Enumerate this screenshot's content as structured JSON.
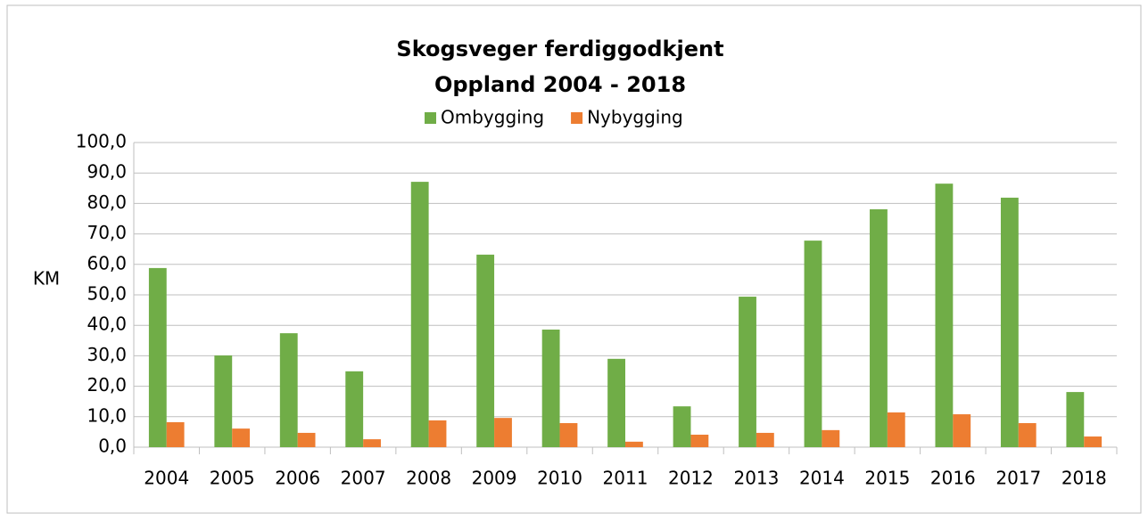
{
  "chart_data": {
    "type": "bar",
    "title": "Skogsveger ferdiggodkjent",
    "subtitle": "Oppland 2004 - 2018",
    "ylabel": "KM",
    "categories": [
      "2004",
      "2005",
      "2006",
      "2007",
      "2008",
      "2009",
      "2010",
      "2011",
      "2012",
      "2013",
      "2014",
      "2015",
      "2016",
      "2017",
      "2018"
    ],
    "series": [
      {
        "name": "Ombygging",
        "color": "#70ad47",
        "values": [
          58.8,
          30.1,
          37.4,
          24.9,
          87.1,
          63.2,
          38.6,
          29.0,
          13.4,
          49.4,
          67.8,
          78.1,
          86.5,
          81.9,
          18.1
        ]
      },
      {
        "name": "Nybygging",
        "color": "#ed7d31",
        "values": [
          8.2,
          6.1,
          4.7,
          2.6,
          8.8,
          9.6,
          7.9,
          1.8,
          4.1,
          4.7,
          5.6,
          11.4,
          10.8,
          7.9,
          3.5
        ]
      }
    ],
    "ylim": [
      0,
      100
    ],
    "yticks": [
      {
        "value": 0,
        "label": "0,0"
      },
      {
        "value": 10,
        "label": "10,0"
      },
      {
        "value": 20,
        "label": "20,0"
      },
      {
        "value": 30,
        "label": "30,0"
      },
      {
        "value": 40,
        "label": "40,0"
      },
      {
        "value": 50,
        "label": "50,0"
      },
      {
        "value": 60,
        "label": "60,0"
      },
      {
        "value": 70,
        "label": "70,0"
      },
      {
        "value": 80,
        "label": "80,0"
      },
      {
        "value": 90,
        "label": "90,0"
      },
      {
        "value": 100,
        "label": "100,0"
      }
    ],
    "grid": true,
    "legend": "top"
  }
}
